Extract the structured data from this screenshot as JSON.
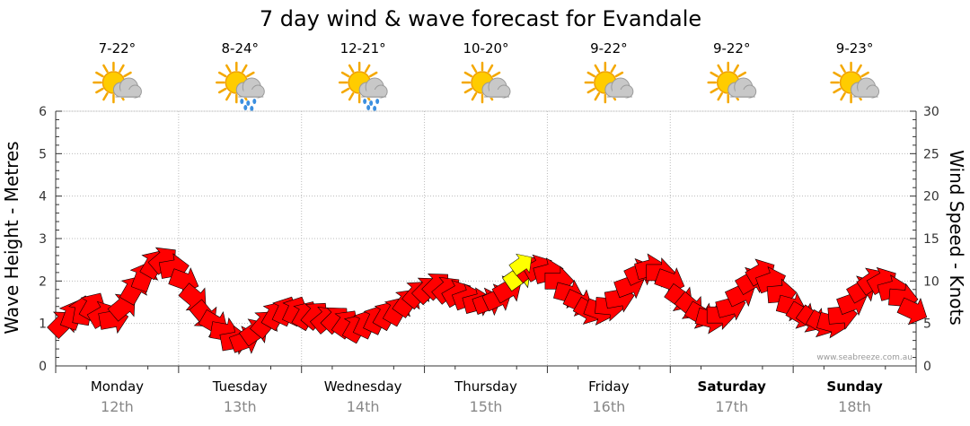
{
  "chart_data": {
    "type": "line",
    "title": "7 day wind & wave forecast for Evandale",
    "ylabel_left": "Wave Height - Metres",
    "ylabel_right": "Wind Speed - Knots",
    "ylim_left": [
      0,
      6
    ],
    "ylim_right": [
      0,
      30
    ],
    "left_ticks": [
      "0",
      "1",
      "2",
      "3",
      "4",
      "5",
      "6"
    ],
    "right_ticks": [
      "0",
      "5",
      "10",
      "15",
      "20",
      "25",
      "30"
    ],
    "days": [
      {
        "name": "Monday",
        "date": "12th",
        "temp": "7-22°",
        "icon": "sun-cloud-icon",
        "bold": false
      },
      {
        "name": "Tuesday",
        "date": "13th",
        "temp": "8-24°",
        "icon": "sun-cloud-rain-icon",
        "bold": false
      },
      {
        "name": "Wednesday",
        "date": "14th",
        "temp": "12-21°",
        "icon": "sun-cloud-rain-icon",
        "bold": false
      },
      {
        "name": "Thursday",
        "date": "15th",
        "temp": "10-20°",
        "icon": "sun-cloud-icon",
        "bold": false
      },
      {
        "name": "Friday",
        "date": "16th",
        "temp": "9-22°",
        "icon": "sun-cloud-icon",
        "bold": false
      },
      {
        "name": "Saturday",
        "date": "17th",
        "temp": "9-22°",
        "icon": "sun-cloud-icon",
        "bold": true
      },
      {
        "name": "Sunday",
        "date": "18th",
        "temp": "9-23°",
        "icon": "sun-cloud-icon",
        "bold": true
      }
    ],
    "wind_series": {
      "name": "Wind Speed (knots)",
      "color": "#ff0000",
      "highlight_color": "#ffff00",
      "highlight_index": 45,
      "values": [
        5,
        6,
        6.5,
        7,
        6,
        5.5,
        7,
        9,
        10.5,
        12,
        12.5,
        11.5,
        10,
        8,
        6,
        5,
        4,
        3,
        3,
        4,
        5,
        6,
        6.5,
        6.5,
        6,
        6,
        5.5,
        5.5,
        5,
        4.5,
        5,
        5.5,
        6,
        6.5,
        7.5,
        8.5,
        9,
        9.5,
        9,
        8.5,
        8,
        7.5,
        7.5,
        8,
        9,
        10.5,
        11.5,
        11.5,
        11,
        10,
        8.5,
        7.5,
        6.5,
        6.5,
        7,
        8,
        9.5,
        11,
        11.5,
        11,
        10,
        8,
        7,
        6,
        5.5,
        6,
        7,
        8.5,
        10,
        11,
        10,
        8.5,
        7,
        6,
        5.5,
        5,
        5,
        6,
        7.5,
        9,
        10,
        10,
        9,
        8,
        6.5
      ],
      "directions_deg": [
        225,
        200,
        190,
        210,
        240,
        260,
        230,
        210,
        200,
        210,
        230,
        260,
        290,
        310,
        320,
        300,
        280,
        260,
        250,
        235,
        220,
        210,
        205,
        205,
        210,
        220,
        230,
        225,
        215,
        210,
        205,
        205,
        210,
        210,
        215,
        220,
        225,
        225,
        230,
        240,
        250,
        255,
        250,
        245,
        240,
        235,
        230,
        240,
        255,
        270,
        285,
        295,
        300,
        290,
        275,
        260,
        250,
        245,
        255,
        270,
        290,
        305,
        310,
        300,
        285,
        270,
        255,
        245,
        240,
        240,
        250,
        265,
        285,
        300,
        305,
        300,
        285,
        265,
        250,
        240,
        235,
        240,
        255,
        275,
        295
      ]
    }
  },
  "credit": "www.seabreeze.com.au"
}
